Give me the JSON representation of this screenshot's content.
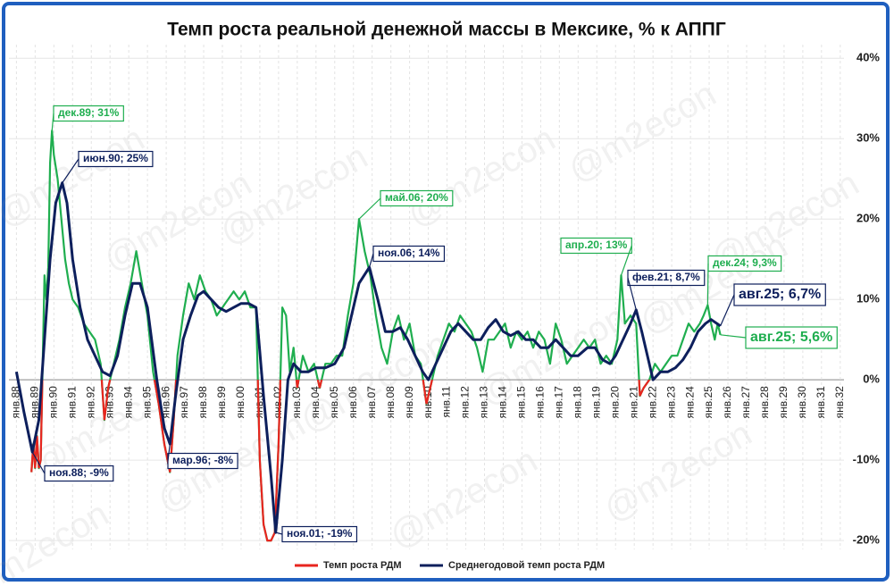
{
  "chart_data": {
    "type": "line",
    "title": "Темп роста реальной денежной массы в Мексике, % к АППГ",
    "watermark": "@m2econ",
    "xlim": [
      1987.6,
      2032.2
    ],
    "ylim": [
      -21.1,
      41.7
    ],
    "yticks": [
      {
        "value": -20,
        "label": "-20%"
      },
      {
        "value": -10,
        "label": "-10%"
      },
      {
        "value": 0,
        "label": "0%"
      },
      {
        "value": 10,
        "label": "10%"
      },
      {
        "value": 20,
        "label": "20%"
      },
      {
        "value": 30,
        "label": "30%"
      },
      {
        "value": 40,
        "label": "40%"
      }
    ],
    "xticks": [
      {
        "value": 1988,
        "label": "янв.88"
      },
      {
        "value": 1989,
        "label": "янв.89"
      },
      {
        "value": 1990,
        "label": "янв.90"
      },
      {
        "value": 1991,
        "label": "янв.91"
      },
      {
        "value": 1992,
        "label": "янв.92"
      },
      {
        "value": 1993,
        "label": "янв.93"
      },
      {
        "value": 1994,
        "label": "янв.94"
      },
      {
        "value": 1995,
        "label": "янв.95"
      },
      {
        "value": 1996,
        "label": "янв.96"
      },
      {
        "value": 1997,
        "label": "янв.97"
      },
      {
        "value": 1998,
        "label": "янв.98"
      },
      {
        "value": 1999,
        "label": "янв.99"
      },
      {
        "value": 2000,
        "label": "янв.00"
      },
      {
        "value": 2001,
        "label": "янв.01"
      },
      {
        "value": 2002,
        "label": "янв.02"
      },
      {
        "value": 2003,
        "label": "янв.03"
      },
      {
        "value": 2004,
        "label": "янв.04"
      },
      {
        "value": 2005,
        "label": "янв.05"
      },
      {
        "value": 2006,
        "label": "янв.06"
      },
      {
        "value": 2007,
        "label": "янв.07"
      },
      {
        "value": 2008,
        "label": "янв.08"
      },
      {
        "value": 2009,
        "label": "янв.09"
      },
      {
        "value": 2010,
        "label": "янв.10"
      },
      {
        "value": 2011,
        "label": "янв.11"
      },
      {
        "value": 2012,
        "label": "янв.12"
      },
      {
        "value": 2013,
        "label": "янв.13"
      },
      {
        "value": 2014,
        "label": "янв.14"
      },
      {
        "value": 2015,
        "label": "янв.15"
      },
      {
        "value": 2016,
        "label": "янв.16"
      },
      {
        "value": 2017,
        "label": "янв.17"
      },
      {
        "value": 2018,
        "label": "янв.18"
      },
      {
        "value": 2019,
        "label": "янв.19"
      },
      {
        "value": 2020,
        "label": "янв.20"
      },
      {
        "value": 2021,
        "label": "янв.21"
      },
      {
        "value": 2022,
        "label": "янв.22"
      },
      {
        "value": 2023,
        "label": "янв.23"
      },
      {
        "value": 2024,
        "label": "янв.24"
      },
      {
        "value": 2025,
        "label": "янв.25"
      },
      {
        "value": 2026,
        "label": "янв.26"
      },
      {
        "value": 2027,
        "label": "янв.27"
      },
      {
        "value": 2028,
        "label": "янв.28"
      },
      {
        "value": 2029,
        "label": "янв.29"
      },
      {
        "value": 2030,
        "label": "янв.30"
      },
      {
        "value": 2031,
        "label": "янв.31"
      },
      {
        "value": 2032,
        "label": "янв.32"
      }
    ],
    "grid": true,
    "series": [
      {
        "name": "Темп роста РДМ",
        "color": "#1fae4f",
        "negative_color": "#e8251f",
        "legend_color": "#e8251f",
        "x": [
          1988.8,
          1988.9,
          1989.0,
          1989.1,
          1989.2,
          1989.3,
          1989.5,
          1989.6,
          1989.7,
          1989.8,
          1989.9,
          1990.0,
          1990.2,
          1990.4,
          1990.6,
          1990.8,
          1991.0,
          1991.3,
          1991.6,
          1991.9,
          1992.2,
          1992.5,
          1992.7,
          1992.9,
          1993.2,
          1993.5,
          1993.8,
          1994.1,
          1994.4,
          1994.7,
          1995.0,
          1995.3,
          1995.6,
          1995.9,
          1996.2,
          1996.4,
          1996.6,
          1996.9,
          1997.2,
          1997.5,
          1997.8,
          1998.1,
          1998.4,
          1998.7,
          1999.0,
          1999.3,
          1999.6,
          1999.9,
          2000.2,
          2000.5,
          2000.8,
          2001.0,
          2001.2,
          2001.4,
          2001.6,
          2001.8,
          2002.0,
          2002.2,
          2002.4,
          2002.6,
          2002.8,
          2003.0,
          2003.3,
          2003.6,
          2003.9,
          2004.2,
          2004.5,
          2004.8,
          2005.1,
          2005.4,
          2005.7,
          2006.0,
          2006.3,
          2006.6,
          2006.9,
          2007.2,
          2007.5,
          2007.8,
          2008.1,
          2008.4,
          2008.7,
          2009.0,
          2009.3,
          2009.6,
          2009.9,
          2010.2,
          2010.5,
          2010.8,
          2011.1,
          2011.4,
          2011.7,
          2012.0,
          2012.3,
          2012.6,
          2012.9,
          2013.2,
          2013.5,
          2013.8,
          2014.1,
          2014.4,
          2014.7,
          2015.0,
          2015.3,
          2015.6,
          2015.9,
          2016.2,
          2016.5,
          2016.8,
          2017.1,
          2017.4,
          2017.7,
          2018.0,
          2018.3,
          2018.6,
          2018.9,
          2019.2,
          2019.5,
          2019.8,
          2020.1,
          2020.3,
          2020.5,
          2020.8,
          2021.1,
          2021.3,
          2021.5,
          2021.8,
          2022.1,
          2022.4,
          2022.7,
          2023.0,
          2023.3,
          2023.6,
          2023.9,
          2024.2,
          2024.5,
          2024.7,
          2024.92,
          2025.1,
          2025.3,
          2025.45,
          2025.6
        ],
        "values": [
          -11.5,
          -8,
          -11,
          -7,
          -11,
          -10,
          13,
          10,
          14,
          27,
          31,
          28,
          25,
          20,
          15,
          12,
          10,
          9,
          7,
          6,
          5,
          2,
          -5,
          -1,
          2,
          5,
          9,
          12,
          16,
          12,
          8,
          1,
          -3,
          -8,
          -11.5,
          -5,
          3,
          8,
          12,
          10,
          13,
          11,
          10,
          8,
          9,
          10,
          11,
          10,
          11,
          9,
          9,
          -10,
          -18,
          -20,
          -20,
          -19,
          -8,
          9,
          8,
          1,
          4,
          -1,
          3,
          1,
          2,
          -1,
          2,
          2,
          3,
          3,
          8,
          12,
          20,
          16,
          13,
          8,
          4,
          2,
          6,
          8,
          5,
          7,
          3,
          2,
          -3,
          0,
          3,
          5,
          7,
          6,
          8,
          7,
          6,
          4,
          1,
          5,
          5,
          6,
          7,
          4,
          6,
          5,
          6,
          4,
          6,
          5,
          2,
          7,
          5,
          2,
          3,
          4,
          5,
          4,
          5,
          2,
          3,
          2,
          5,
          13,
          7,
          8,
          7,
          -2,
          -1,
          0,
          2,
          1,
          2,
          3,
          3,
          5,
          7,
          6,
          7,
          8,
          9.3,
          7,
          5,
          7,
          5.6
        ]
      },
      {
        "name": "Среднегодовой темп роста РДМ",
        "color": "#0d1f5c",
        "x": [
          1988.0,
          1988.4,
          1988.85,
          1989.2,
          1989.5,
          1989.8,
          1990.1,
          1990.45,
          1990.7,
          1991.0,
          1991.4,
          1991.8,
          1992.2,
          1992.6,
          1993.0,
          1993.4,
          1993.8,
          1994.2,
          1994.6,
          1995.0,
          1995.5,
          1995.9,
          1996.2,
          1996.5,
          1996.9,
          1997.3,
          1997.7,
          1998.0,
          1998.4,
          1998.8,
          1999.2,
          1999.6,
          2000.0,
          2000.4,
          2000.8,
          2001.2,
          2001.6,
          2001.85,
          2002.2,
          2002.5,
          2002.8,
          2003.2,
          2003.6,
          2004.0,
          2004.5,
          2005.0,
          2005.5,
          2005.9,
          2006.3,
          2006.85,
          2007.3,
          2007.7,
          2008.1,
          2008.5,
          2008.9,
          2009.3,
          2009.7,
          2010.0,
          2010.4,
          2010.8,
          2011.2,
          2011.6,
          2012.0,
          2012.4,
          2012.8,
          2013.2,
          2013.6,
          2014.0,
          2014.4,
          2014.8,
          2015.2,
          2015.6,
          2016.0,
          2016.4,
          2016.8,
          2017.2,
          2017.6,
          2018.0,
          2018.5,
          2018.9,
          2019.3,
          2019.7,
          2020.0,
          2020.4,
          2020.8,
          2021.1,
          2021.4,
          2021.7,
          2022.0,
          2022.4,
          2022.8,
          2023.2,
          2023.6,
          2024.0,
          2024.4,
          2024.8,
          2025.1,
          2025.6
        ],
        "values": [
          1,
          -4,
          -9,
          -5,
          5,
          15,
          22,
          24.5,
          22,
          15,
          9,
          5,
          3,
          1,
          0.5,
          3,
          8,
          12,
          12,
          9,
          0,
          -6,
          -8,
          -2,
          5,
          8,
          10.5,
          11,
          10,
          9,
          8.5,
          9,
          9.5,
          9.5,
          9,
          -2,
          -12,
          -19,
          -10,
          0,
          2,
          1,
          1,
          1.5,
          1.5,
          2,
          4,
          8,
          12,
          14,
          10,
          6,
          6,
          6.5,
          5,
          3,
          1,
          0,
          2,
          4,
          6,
          7,
          6,
          5,
          5,
          6.5,
          7.5,
          6,
          5.5,
          6,
          5,
          5,
          4,
          4,
          5,
          4,
          3,
          3,
          4,
          4,
          2.5,
          2,
          3,
          5,
          7,
          8.7,
          6,
          3,
          0,
          1,
          1,
          1.5,
          2.5,
          4,
          6,
          7,
          7.5,
          6.7
        ]
      }
    ],
    "annotations": [
      {
        "text": "дек.89; 31%",
        "x": 1989.9,
        "y": 31,
        "color": "#1fae4f"
      },
      {
        "text": "июн.90; 25%",
        "x": 1990.45,
        "y": 24.5,
        "color": "#0d1f5c"
      },
      {
        "text": "ноя.88; -9%",
        "x": 1988.85,
        "y": -9,
        "color": "#0d1f5c"
      },
      {
        "text": "мар.96; -8%",
        "x": 1996.2,
        "y": -8,
        "color": "#0d1f5c"
      },
      {
        "text": "ноя.01; -19%",
        "x": 2001.85,
        "y": -19,
        "color": "#0d1f5c"
      },
      {
        "text": "май.06; 20%",
        "x": 2006.3,
        "y": 20,
        "color": "#1fae4f"
      },
      {
        "text": "ноя.06; 14%",
        "x": 2006.85,
        "y": 14,
        "color": "#0d1f5c"
      },
      {
        "text": "апр.20; 13%",
        "x": 2020.3,
        "y": 13,
        "color": "#1fae4f"
      },
      {
        "text": "фев.21; 8,7%",
        "x": 2021.1,
        "y": 8.7,
        "color": "#0d1f5c"
      },
      {
        "text": "дек.24; 9,3%",
        "x": 2024.92,
        "y": 9.3,
        "color": "#1fae4f"
      },
      {
        "text": "авг.25; 6,7%",
        "x": 2025.6,
        "y": 6.7,
        "color": "#0d1f5c"
      },
      {
        "text": "авг.25; 5,6%",
        "x": 2025.6,
        "y": 5.6,
        "color": "#1fae4f"
      }
    ]
  }
}
